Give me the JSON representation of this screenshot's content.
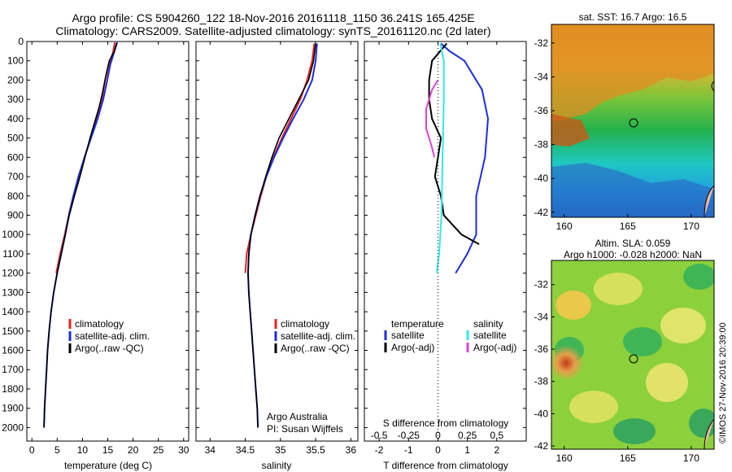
{
  "header": {
    "line1": "Argo profile: CS 5904260_122 18-Nov-2016 20161118_1150 36.241S 165.425E",
    "line2": "Climatology: CARS2009. Satellite-adjusted climatology: synTS_20161120.nc (2d later)"
  },
  "colors": {
    "climatology": "#e8231f",
    "satellite": "#1b2ee0",
    "argo": "#000000",
    "sat_salinity": "#2ee8ee",
    "argo_adj_salinity": "#e040d8"
  },
  "chart_data": [
    {
      "type": "line",
      "xlabel": "temperature (deg C)",
      "xlim": [
        -1,
        31
      ],
      "xticks": [
        "0",
        "5",
        "10",
        "15",
        "20",
        "25",
        "30"
      ],
      "ylim": [
        2070,
        0
      ],
      "yticks": [
        "0",
        "100",
        "200",
        "300",
        "400",
        "500",
        "600",
        "700",
        "800",
        "900",
        "1000",
        "1100",
        "1200",
        "1300",
        "1400",
        "1500",
        "1600",
        "1700",
        "1800",
        "1900",
        "2000"
      ],
      "legend": [
        "climatology",
        "satellite-adj. clim.",
        "Argo(..raw -QC)"
      ],
      "series": [
        {
          "name": "climatology",
          "points": [
            [
              16.4,
              5
            ],
            [
              16,
              60
            ],
            [
              15.2,
              120
            ],
            [
              14.5,
              200
            ],
            [
              13.8,
              300
            ],
            [
              12.8,
              400
            ],
            [
              11.6,
              500
            ],
            [
              10.4,
              600
            ],
            [
              9.3,
              700
            ],
            [
              8.2,
              800
            ],
            [
              7.3,
              900
            ],
            [
              6.5,
              1000
            ],
            [
              5.6,
              1100
            ],
            [
              4.8,
              1200
            ]
          ]
        },
        {
          "name": "satellite-adj. clim.",
          "points": [
            [
              16.8,
              5
            ],
            [
              16.2,
              60
            ],
            [
              15.5,
              120
            ],
            [
              14.9,
              200
            ],
            [
              14.1,
              300
            ],
            [
              13,
              400
            ],
            [
              11.7,
              500
            ],
            [
              10.4,
              600
            ],
            [
              9.2,
              700
            ],
            [
              8.2,
              800
            ],
            [
              7.3,
              900
            ],
            [
              6.6,
              1000
            ],
            [
              5.8,
              1100
            ],
            [
              5,
              1200
            ],
            [
              4.3,
              1300
            ],
            [
              3.8,
              1400
            ],
            [
              3.4,
              1500
            ],
            [
              3.1,
              1600
            ],
            [
              2.9,
              1700
            ],
            [
              2.7,
              1800
            ],
            [
              2.5,
              1900
            ],
            [
              2.4,
              2000
            ]
          ]
        },
        {
          "name": "Argo(..raw -QC)",
          "points": [
            [
              16.9,
              5
            ],
            [
              16.3,
              50
            ],
            [
              15.3,
              100
            ],
            [
              14.6,
              180
            ],
            [
              14,
              260
            ],
            [
              13.3,
              340
            ],
            [
              12.4,
              420
            ],
            [
              11.5,
              500
            ],
            [
              10.5,
              600
            ],
            [
              9.5,
              700
            ],
            [
              8.4,
              800
            ],
            [
              7.4,
              900
            ],
            [
              6.6,
              1000
            ],
            [
              5.8,
              1100
            ],
            [
              5,
              1200
            ],
            [
              4.3,
              1300
            ],
            [
              3.8,
              1400
            ],
            [
              3.4,
              1500
            ],
            [
              3.1,
              1600
            ],
            [
              2.9,
              1700
            ],
            [
              2.7,
              1800
            ],
            [
              2.5,
              1900
            ],
            [
              2.4,
              2000
            ]
          ]
        }
      ]
    },
    {
      "type": "line",
      "xlabel": "salinity",
      "xlim": [
        33.8,
        36.1
      ],
      "xticks": [
        "34",
        "34.5",
        "35",
        "35.5",
        "36"
      ],
      "ylim": [
        2070,
        0
      ],
      "legend": [
        "climatology",
        "satellite-adj. clim.",
        "Argo(..raw -QC)"
      ],
      "annotation": [
        "Argo Australia",
        "PI: Susan Wijffels"
      ],
      "series": [
        {
          "name": "climatology",
          "points": [
            [
              35.48,
              10
            ],
            [
              35.45,
              100
            ],
            [
              35.38,
              200
            ],
            [
              35.28,
              300
            ],
            [
              35.15,
              400
            ],
            [
              35.02,
              500
            ],
            [
              34.9,
              600
            ],
            [
              34.8,
              700
            ],
            [
              34.72,
              800
            ],
            [
              34.65,
              900
            ],
            [
              34.58,
              1000
            ],
            [
              34.52,
              1100
            ],
            [
              34.5,
              1200
            ]
          ]
        },
        {
          "name": "satellite-adj. clim.",
          "points": [
            [
              35.52,
              10
            ],
            [
              35.5,
              100
            ],
            [
              35.45,
              200
            ],
            [
              35.33,
              300
            ],
            [
              35.18,
              400
            ],
            [
              35.04,
              500
            ],
            [
              34.91,
              600
            ],
            [
              34.8,
              700
            ],
            [
              34.71,
              800
            ],
            [
              34.64,
              900
            ],
            [
              34.58,
              1000
            ],
            [
              34.55,
              1100
            ],
            [
              34.54,
              1200
            ],
            [
              34.55,
              1300
            ],
            [
              34.57,
              1400
            ],
            [
              34.59,
              1500
            ],
            [
              34.61,
              1600
            ],
            [
              34.63,
              1700
            ],
            [
              34.65,
              1800
            ],
            [
              34.67,
              1900
            ],
            [
              34.68,
              2000
            ]
          ]
        },
        {
          "name": "Argo(..raw -QC)",
          "points": [
            [
              35.5,
              10
            ],
            [
              35.47,
              100
            ],
            [
              35.4,
              200
            ],
            [
              35.26,
              300
            ],
            [
              35.12,
              400
            ],
            [
              34.98,
              500
            ],
            [
              34.88,
              600
            ],
            [
              34.79,
              700
            ],
            [
              34.71,
              800
            ],
            [
              34.64,
              900
            ],
            [
              34.58,
              1000
            ],
            [
              34.55,
              1100
            ],
            [
              34.54,
              1200
            ],
            [
              34.55,
              1300
            ],
            [
              34.57,
              1400
            ],
            [
              34.59,
              1500
            ],
            [
              34.61,
              1600
            ],
            [
              34.63,
              1700
            ],
            [
              34.65,
              1800
            ],
            [
              34.67,
              1900
            ],
            [
              34.68,
              2000
            ]
          ]
        }
      ]
    },
    {
      "type": "line",
      "xlabel": "T difference from climatology",
      "xlim": [
        -2.5,
        3
      ],
      "xticks": [
        "-2",
        "-1",
        "0",
        "1",
        "2"
      ],
      "top_xlabel": "S difference from climatology",
      "top_xticks": [
        "-0.5",
        "-0.25",
        "0",
        "0.25",
        "0.5"
      ],
      "ylim": [
        2070,
        0
      ],
      "legend_temperature": [
        "temperature",
        "satellite",
        "Argo(-adj)"
      ],
      "legend_salinity": [
        "salinity",
        "satellite",
        "Argo(-adj)"
      ],
      "series": [
        {
          "name": "satellite",
          "points": [
            [
              0.1,
              10
            ],
            [
              0.4,
              50
            ],
            [
              0.9,
              100
            ],
            [
              1.5,
              250
            ],
            [
              1.7,
              400
            ],
            [
              1.6,
              600
            ],
            [
              1.3,
              800
            ],
            [
              1.3,
              1000
            ],
            [
              1,
              1100
            ],
            [
              0.6,
              1200
            ]
          ]
        },
        {
          "name": "Argo(-adj)",
          "points": [
            [
              0.3,
              10
            ],
            [
              -0.2,
              100
            ],
            [
              -0.3,
              200
            ],
            [
              -0.3,
              300
            ],
            [
              -0.2,
              400
            ],
            [
              0.1,
              500
            ],
            [
              0,
              600
            ],
            [
              -0.1,
              700
            ],
            [
              0.1,
              800
            ],
            [
              0.2,
              900
            ],
            [
              0.8,
              1000
            ],
            [
              1.4,
              1050
            ]
          ]
        },
        {
          "name": "satellite",
          "points": [
            [
              0.02,
              10
            ],
            [
              0.05,
              100
            ],
            [
              0.05,
              300
            ],
            [
              0.04,
              600
            ],
            [
              0.03,
              900
            ],
            [
              0.01,
              1100
            ],
            [
              -0.01,
              1200
            ]
          ]
        },
        {
          "name": "Argo(-adj)",
          "points": [
            [
              0,
              200
            ],
            [
              -0.05,
              250
            ],
            [
              -0.1,
              350
            ],
            [
              -0.1,
              450
            ],
            [
              -0.05,
              550
            ],
            [
              -0.03,
              600
            ]
          ]
        }
      ]
    }
  ],
  "maps": {
    "sst": {
      "title": "sat. SST: 16.7 Argo: 16.5",
      "yticks": [
        "-32",
        "-34",
        "-36",
        "-38",
        "-40",
        "-42"
      ],
      "xticks": [
        "160",
        "165",
        "170"
      ]
    },
    "sla": {
      "title1": "Altim. SLA: 0.059",
      "title2": "Argo h1000: -0.028 h2000: NaN",
      "yticks": [
        "-32",
        "-34",
        "-36",
        "-38",
        "-40",
        "-42"
      ],
      "xticks": [
        "160",
        "165",
        "170"
      ]
    }
  },
  "footer": {
    "credit": "©IMOS 27-Nov-2016 20:39:00"
  }
}
